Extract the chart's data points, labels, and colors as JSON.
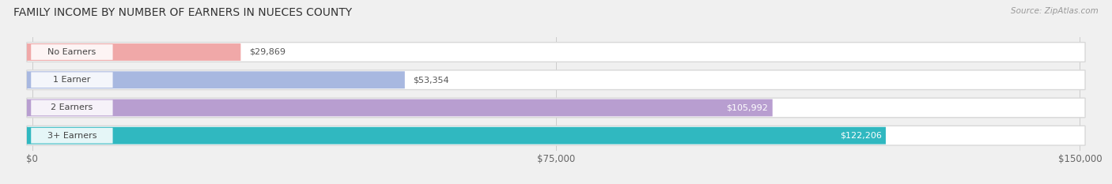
{
  "title": "FAMILY INCOME BY NUMBER OF EARNERS IN NUECES COUNTY",
  "source": "Source: ZipAtlas.com",
  "categories": [
    "No Earners",
    "1 Earner",
    "2 Earners",
    "3+ Earners"
  ],
  "values": [
    29869,
    53354,
    105992,
    122206
  ],
  "bar_colors": [
    "#f0a8a8",
    "#a8b8e0",
    "#b89ed0",
    "#30b8c0"
  ],
  "label_colors": [
    "#555555",
    "#555555",
    "#ffffff",
    "#ffffff"
  ],
  "value_labels": [
    "$29,869",
    "$53,354",
    "$105,992",
    "$122,206"
  ],
  "xmax": 150000,
  "xticklabels": [
    "$0",
    "$75,000",
    "$150,000"
  ],
  "background_color": "#f0f0f0",
  "track_color": "#e8e8e8",
  "track_border": "#d0d0d0",
  "row_bg_color": "#f8f8f8",
  "title_fontsize": 10,
  "source_fontsize": 7.5,
  "cat_label_fontsize": 8,
  "value_fontsize": 8,
  "tick_fontsize": 8.5
}
